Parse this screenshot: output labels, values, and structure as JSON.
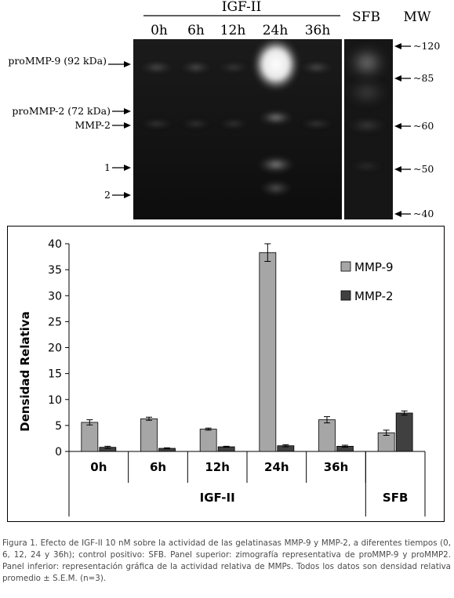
{
  "gel": {
    "group_label": "IGF-II",
    "lanes": [
      "0h",
      "6h",
      "12h",
      "24h",
      "36h"
    ],
    "control_lane": "SFB",
    "mw_header": "MW",
    "left_markers": [
      "proMMP-9 (92 kDa)",
      "proMMP-2 (72 kDa)",
      "MMP-2",
      "1",
      "2"
    ],
    "mw_markers": [
      "~120",
      "~85",
      "~60",
      "~50",
      "~40"
    ]
  },
  "chart_data": {
    "type": "bar",
    "ylabel": "Densidad Relativa",
    "xlabel": "",
    "ylim": [
      0,
      40
    ],
    "yticks": [
      0,
      5,
      10,
      15,
      20,
      25,
      30,
      35,
      40
    ],
    "categories": [
      "0h",
      "6h",
      "12h",
      "24h",
      "36h",
      ""
    ],
    "groups": [
      {
        "label": "IGF-II",
        "span": [
          0,
          4
        ]
      },
      {
        "label": "SFB",
        "span": [
          5,
          5
        ]
      }
    ],
    "legend_position": "top-right",
    "grid": false,
    "series": [
      {
        "name": "MMP-9",
        "color": "#a6a6a6",
        "values": [
          5.6,
          6.3,
          4.3,
          38.3,
          6.1,
          3.6
        ],
        "errors": [
          0.5,
          0.3,
          0.2,
          1.7,
          0.6,
          0.5
        ]
      },
      {
        "name": "MMP-2",
        "color": "#404040",
        "values": [
          0.8,
          0.6,
          0.9,
          1.1,
          1.0,
          7.4
        ],
        "errors": [
          0.2,
          0.1,
          0.1,
          0.2,
          0.2,
          0.4
        ]
      }
    ]
  },
  "caption": "Figura 1. Efecto de IGF-II 10 nM sobre la actividad de las gelatinasas MMP-9 y MMP-2, a diferentes tiempos (0, 6, 12, 24 y 36h); control positivo: SFB. Panel superior: zimografía representativa de proMMP-9 y proMMP2. Panel inferior: representación gráfica de la actividad relativa de MMPs. Todos los datos son densidad relativa promedio ± S.E.M. (n=3)."
}
